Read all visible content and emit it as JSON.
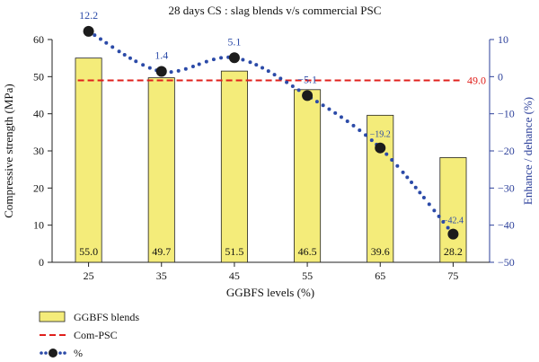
{
  "chart_data": {
    "type": "bar",
    "title": "28 days CS : slag blends v/s commercial PSC",
    "xlabel": "GGBFS levels (%)",
    "ylabel": "Compressive strength (MPa)",
    "y2label": "Enhance / dehance (%)",
    "categories": [
      "25",
      "35",
      "45",
      "55",
      "65",
      "75"
    ],
    "ylim": [
      0,
      60
    ],
    "y2lim": [
      -50,
      10
    ],
    "yticks": [
      0,
      10,
      20,
      30,
      40,
      50,
      60
    ],
    "y2ticks": [
      10,
      0,
      -10,
      -20,
      -30,
      -40,
      -50
    ],
    "grid": false,
    "legend_position": "bottom-left",
    "series": [
      {
        "name": "GGBFS blends",
        "type": "bar",
        "axis": "left",
        "values": [
          55.0,
          49.7,
          51.5,
          46.5,
          39.6,
          28.2
        ],
        "labels": [
          "55.0",
          "49.7",
          "51.5",
          "46.5",
          "39.6",
          "28.2"
        ]
      },
      {
        "name": "Com-PSC",
        "type": "reference-line",
        "axis": "left",
        "value": 49.0,
        "label": "49.0"
      },
      {
        "name": "%",
        "type": "line",
        "axis": "right",
        "values": [
          12.2,
          1.4,
          5.1,
          -5.1,
          -19.2,
          -42.4
        ],
        "labels": [
          "12.2",
          "1.4",
          "5.1",
          "−5.1",
          "−19.2",
          "−42.4"
        ]
      }
    ],
    "colors": {
      "bar_fill": "#f4ec7a",
      "bar_stroke": "#222222",
      "reference": "#e0201c",
      "enhance_line": "#2b4aa8",
      "marker": "#1c1c1c",
      "right_axis": "#2b3f9a"
    }
  }
}
